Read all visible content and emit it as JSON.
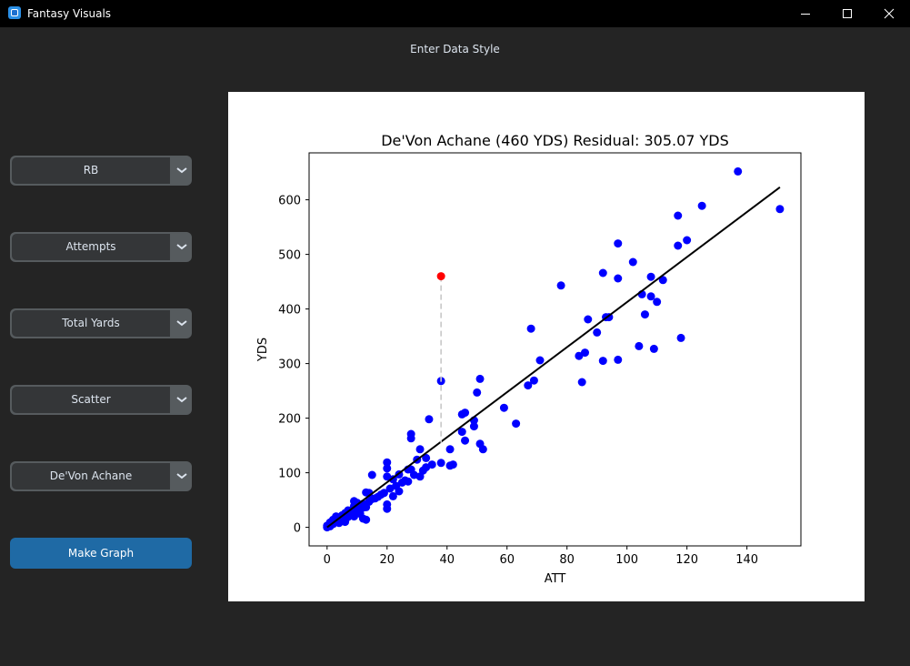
{
  "window": {
    "title": "Fantasy Visuals",
    "title_icon": "app-window-icon"
  },
  "window_controls": {
    "minimize": "minimize-icon",
    "maximize": "maximize-icon",
    "close": "close-icon"
  },
  "header": {
    "label": "Enter Data Style"
  },
  "dropdowns": [
    {
      "value": "RB"
    },
    {
      "value": "Attempts"
    },
    {
      "value": "Total Yards"
    },
    {
      "value": "Scatter"
    },
    {
      "value": "De'Von Achane"
    }
  ],
  "make_graph": {
    "label": "Make Graph"
  },
  "colors": {
    "titlebar": "#000000",
    "background": "#242424",
    "dropdown_face": "#343638",
    "dropdown_border": "#565b5e",
    "button": "#1f6aa5",
    "points": "#0000ff",
    "highlight": "#ff0000",
    "fit_line": "#000000",
    "residual": "#c8c8c8"
  },
  "chart_data": {
    "type": "scatter",
    "title": "De'Von Achane (460 YDS) Residual: 305.07 YDS",
    "xlabel": "ATT",
    "ylabel": "YDS",
    "xlim": [
      -6,
      158
    ],
    "ylim": [
      -34,
      686
    ],
    "xticks": [
      0,
      20,
      40,
      60,
      80,
      100,
      120,
      140
    ],
    "yticks": [
      0,
      100,
      200,
      300,
      400,
      500,
      600
    ],
    "grid": false,
    "legend": "none",
    "fit_line": {
      "x": [
        0,
        151
      ],
      "y": [
        0,
        623
      ]
    },
    "highlight": {
      "x": 38,
      "y": 460,
      "fit_y": 155
    },
    "points": [
      [
        137,
        652
      ],
      [
        151,
        583
      ],
      [
        125,
        589
      ],
      [
        120,
        526
      ],
      [
        117,
        571
      ],
      [
        117,
        516
      ],
      [
        97,
        520
      ],
      [
        102,
        486
      ],
      [
        78,
        443
      ],
      [
        92,
        466
      ],
      [
        97,
        456
      ],
      [
        108,
        459
      ],
      [
        112,
        453
      ],
      [
        105,
        427
      ],
      [
        108,
        423
      ],
      [
        110,
        413
      ],
      [
        106,
        390
      ],
      [
        87,
        381
      ],
      [
        93,
        385
      ],
      [
        94,
        385
      ],
      [
        90,
        357
      ],
      [
        68,
        364
      ],
      [
        71,
        306
      ],
      [
        86,
        320
      ],
      [
        84,
        314
      ],
      [
        104,
        332
      ],
      [
        109,
        327
      ],
      [
        118,
        347
      ],
      [
        97,
        307
      ],
      [
        92,
        305
      ],
      [
        69,
        269
      ],
      [
        67,
        260
      ],
      [
        85,
        266
      ],
      [
        38,
        268
      ],
      [
        51,
        272
      ],
      [
        50,
        247
      ],
      [
        59,
        219
      ],
      [
        63,
        190
      ],
      [
        45,
        207
      ],
      [
        46,
        210
      ],
      [
        49,
        196
      ],
      [
        49,
        185
      ],
      [
        45,
        175
      ],
      [
        46,
        159
      ],
      [
        51,
        153
      ],
      [
        52,
        143
      ],
      [
        34,
        198
      ],
      [
        28,
        171
      ],
      [
        28,
        163
      ],
      [
        31,
        143
      ],
      [
        33,
        127
      ],
      [
        33,
        110
      ],
      [
        41,
        143
      ],
      [
        42,
        115
      ],
      [
        41,
        113
      ],
      [
        38,
        118
      ],
      [
        30,
        124
      ],
      [
        28,
        106
      ],
      [
        27,
        106
      ],
      [
        24,
        97
      ],
      [
        24,
        66
      ],
      [
        22,
        57
      ],
      [
        20,
        93
      ],
      [
        20,
        119
      ],
      [
        20,
        108
      ],
      [
        22,
        88
      ],
      [
        27,
        84
      ],
      [
        31,
        93
      ],
      [
        15,
        96
      ],
      [
        14,
        63
      ],
      [
        15,
        52
      ],
      [
        13,
        64
      ],
      [
        12,
        43
      ],
      [
        13,
        37
      ],
      [
        10,
        45
      ],
      [
        9,
        48
      ],
      [
        9,
        39
      ],
      [
        20,
        42
      ],
      [
        20,
        34
      ],
      [
        11,
        25
      ],
      [
        12,
        16
      ],
      [
        13,
        14
      ],
      [
        8,
        31
      ],
      [
        8,
        25
      ],
      [
        7,
        31
      ],
      [
        6,
        26
      ],
      [
        5,
        22
      ],
      [
        5,
        16
      ],
      [
        4,
        10
      ],
      [
        4,
        8
      ],
      [
        3,
        20
      ],
      [
        3,
        12
      ],
      [
        2,
        14
      ],
      [
        2,
        6
      ],
      [
        1,
        9
      ],
      [
        1,
        4
      ],
      [
        1,
        2
      ],
      [
        0,
        3
      ],
      [
        0,
        0
      ],
      [
        6,
        10
      ],
      [
        7,
        19
      ],
      [
        9,
        20
      ],
      [
        10,
        28
      ],
      [
        11,
        33
      ],
      [
        12,
        36
      ],
      [
        14,
        47
      ],
      [
        16,
        53
      ],
      [
        17,
        56
      ],
      [
        18,
        60
      ],
      [
        19,
        63
      ],
      [
        21,
        71
      ],
      [
        23,
        76
      ],
      [
        25,
        82
      ],
      [
        26,
        86
      ],
      [
        29,
        96
      ],
      [
        32,
        104
      ],
      [
        35,
        115
      ]
    ]
  }
}
